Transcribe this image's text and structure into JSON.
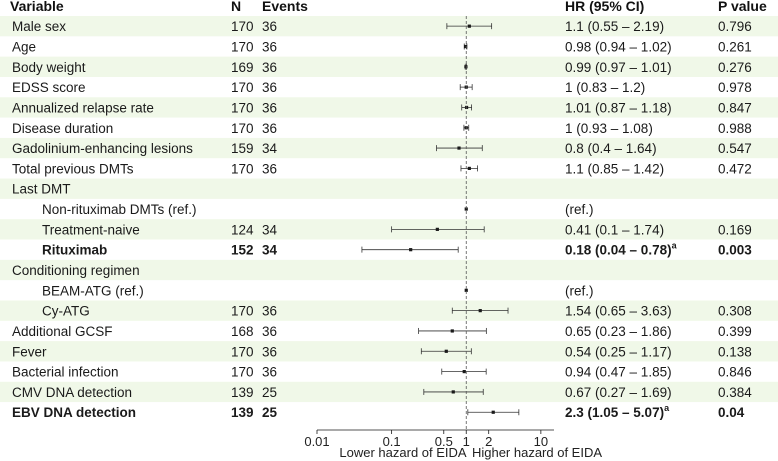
{
  "chart_data": {
    "type": "forest",
    "columns": {
      "variable": "Variable",
      "n": "N",
      "events": "Events",
      "hr": "HR (95% CI)",
      "p": "P value"
    },
    "x_scale": "log",
    "xlim": [
      0.01,
      15
    ],
    "reference_line": 1,
    "x_ticks": [
      {
        "value": 0.01,
        "label": "0.01"
      },
      {
        "value": 0.1,
        "label": "0.1"
      },
      {
        "value": 0.5,
        "label": "0.5"
      },
      {
        "value": 1,
        "label": "1"
      },
      {
        "value": 2,
        "label": "2"
      },
      {
        "value": 10,
        "label": "10"
      }
    ],
    "x_label_left": "Lower hazard of EIDA",
    "x_label_right": "Higher hazard of EIDA",
    "rows": [
      {
        "label": "Male sex",
        "indent": 0,
        "n": "170",
        "events": "36",
        "hr": 1.1,
        "lo": 0.55,
        "hi": 2.19,
        "hr_text": "1.1 (0.55 – 2.19)",
        "p": "0.796",
        "bold": false
      },
      {
        "label": "Age",
        "indent": 0,
        "n": "170",
        "events": "36",
        "hr": 0.98,
        "lo": 0.94,
        "hi": 1.02,
        "hr_text": "0.98 (0.94 – 1.02)",
        "p": "0.261",
        "bold": false
      },
      {
        "label": "Body weight",
        "indent": 0,
        "n": "169",
        "events": "36",
        "hr": 0.99,
        "lo": 0.97,
        "hi": 1.01,
        "hr_text": "0.99 (0.97 – 1.01)",
        "p": "0.276",
        "bold": false
      },
      {
        "label": "EDSS score",
        "indent": 0,
        "n": "170",
        "events": "36",
        "hr": 1,
        "lo": 0.83,
        "hi": 1.2,
        "hr_text": "1 (0.83 – 1.2)",
        "p": "0.978",
        "bold": false
      },
      {
        "label": "Annualized relapse rate",
        "indent": 0,
        "n": "170",
        "events": "36",
        "hr": 1.01,
        "lo": 0.87,
        "hi": 1.18,
        "hr_text": "1.01 (0.87 – 1.18)",
        "p": "0.847",
        "bold": false
      },
      {
        "label": "Disease duration",
        "indent": 0,
        "n": "170",
        "events": "36",
        "hr": 1,
        "lo": 0.93,
        "hi": 1.08,
        "hr_text": "1 (0.93 – 1.08)",
        "p": "0.988",
        "bold": false
      },
      {
        "label": "Gadolinium-enhancing lesions",
        "indent": 0,
        "n": "159",
        "events": "34",
        "hr": 0.8,
        "lo": 0.4,
        "hi": 1.64,
        "hr_text": "0.8 (0.4 – 1.64)",
        "p": "0.547",
        "bold": false
      },
      {
        "label": "Total previous DMTs",
        "indent": 0,
        "n": "170",
        "events": "36",
        "hr": 1.1,
        "lo": 0.85,
        "hi": 1.42,
        "hr_text": "1.1 (0.85 – 1.42)",
        "p": "0.472",
        "bold": false
      },
      {
        "label": "Last DMT",
        "indent": 0,
        "n": "",
        "events": "",
        "hr": null,
        "lo": null,
        "hi": null,
        "hr_text": "",
        "p": "",
        "bold": false
      },
      {
        "label": "Non-rituximab DMTs (ref.)",
        "indent": 1,
        "n": "",
        "events": "",
        "hr": 1,
        "lo": null,
        "hi": null,
        "hr_text": "(ref.)",
        "p": "",
        "bold": false
      },
      {
        "label": "Treatment-naive",
        "indent": 1,
        "n": "124",
        "events": "34",
        "hr": 0.41,
        "lo": 0.1,
        "hi": 1.74,
        "hr_text": "0.41 (0.1 – 1.74)",
        "p": "0.169",
        "bold": false
      },
      {
        "label": "Rituximab",
        "indent": 1,
        "n": "152",
        "events": "34",
        "hr": 0.18,
        "lo": 0.04,
        "hi": 0.78,
        "hr_text": "0.18 (0.04 – 0.78)",
        "sup": "a",
        "p": "0.003",
        "bold": true
      },
      {
        "label": "Conditioning regimen",
        "indent": 0,
        "n": "",
        "events": "",
        "hr": null,
        "lo": null,
        "hi": null,
        "hr_text": "",
        "p": "",
        "bold": false
      },
      {
        "label": "BEAM-ATG (ref.)",
        "indent": 1,
        "n": "",
        "events": "",
        "hr": 1,
        "lo": null,
        "hi": null,
        "hr_text": "(ref.)",
        "p": "",
        "bold": false
      },
      {
        "label": "Cy-ATG",
        "indent": 1,
        "n": "170",
        "events": "36",
        "hr": 1.54,
        "lo": 0.65,
        "hi": 3.63,
        "hr_text": "1.54 (0.65 – 3.63)",
        "p": "0.308",
        "bold": false
      },
      {
        "label": "Additional GCSF",
        "indent": 0,
        "n": "168",
        "events": "36",
        "hr": 0.65,
        "lo": 0.23,
        "hi": 1.86,
        "hr_text": "0.65 (0.23 – 1.86)",
        "p": "0.399",
        "bold": false
      },
      {
        "label": "Fever",
        "indent": 0,
        "n": "170",
        "events": "36",
        "hr": 0.54,
        "lo": 0.25,
        "hi": 1.17,
        "hr_text": "0.54 (0.25 – 1.17)",
        "p": "0.138",
        "bold": false
      },
      {
        "label": "Bacterial infection",
        "indent": 0,
        "n": "170",
        "events": "36",
        "hr": 0.94,
        "lo": 0.47,
        "hi": 1.85,
        "hr_text": "0.94 (0.47 – 1.85)",
        "p": "0.846",
        "bold": false
      },
      {
        "label": "CMV DNA detection",
        "indent": 0,
        "n": "139",
        "events": "25",
        "hr": 0.67,
        "lo": 0.27,
        "hi": 1.69,
        "hr_text": "0.67 (0.27 – 1.69)",
        "p": "0.384",
        "bold": false
      },
      {
        "label": "EBV DNA detection",
        "indent": 0,
        "n": "139",
        "events": "25",
        "hr": 2.3,
        "lo": 1.05,
        "hi": 5.07,
        "hr_text": "2.3 (1.05 – 5.07)",
        "sup": "a",
        "p": "0.04",
        "bold": true
      }
    ],
    "colors": {
      "stripe": "#f0f8e8",
      "ink": "#1a1a1a",
      "ci_line": "#333333",
      "ref_line": "#555555"
    }
  }
}
